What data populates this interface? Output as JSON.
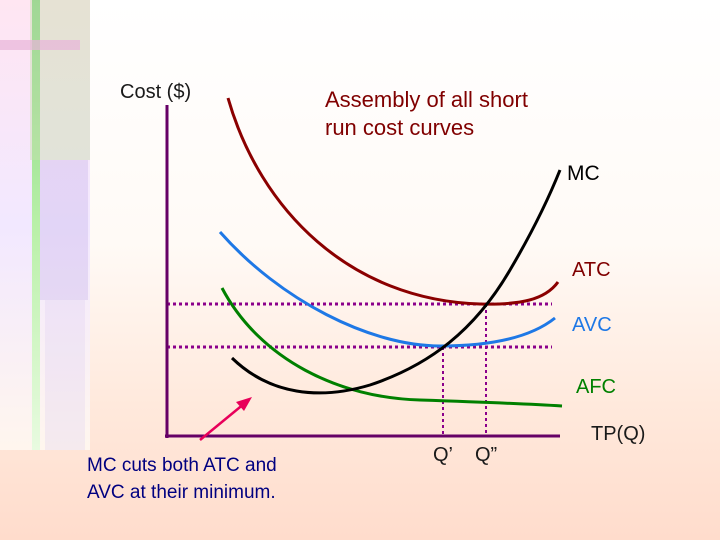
{
  "slide": {
    "y_axis_label": "Cost ($)",
    "title": "Assembly of all short\nrun cost curves",
    "note": "MC cuts both ATC and\nAVC at their minimum.",
    "x_axis_label": "TP(Q)"
  },
  "curves": {
    "mc": {
      "label": "MC",
      "color": "#000000"
    },
    "atc": {
      "label": "ATC",
      "color": "#8b0000"
    },
    "avc": {
      "label": "AVC",
      "color": "#1e78e6"
    },
    "afc": {
      "label": "AFC",
      "color": "#008000"
    }
  },
  "quantities": {
    "q1": "Q’",
    "q2": "Q”"
  },
  "colors": {
    "axis": "#660066",
    "dotted_guides": "#8b008b",
    "arrow": "#e8005a",
    "note_text": "#000080",
    "title_text": "#800000"
  }
}
